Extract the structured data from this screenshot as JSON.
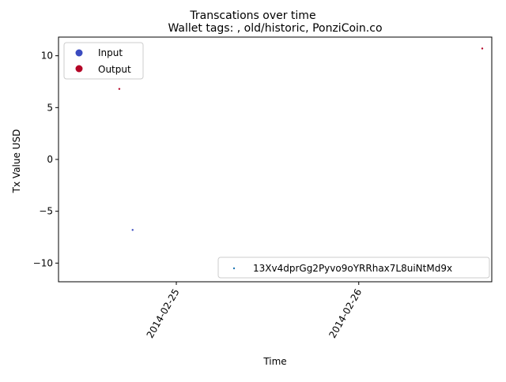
{
  "chart_data": {
    "type": "scatter",
    "suptitle": "Transcations over time",
    "title": "Wallet tags: , old/historic, PonziCoin.co",
    "xlabel": "Time",
    "ylabel": "Tx Value USD",
    "xlim": [
      "2014-02-24 08:30",
      "2014-02-26 17:30"
    ],
    "ylim": [
      -11.8,
      11.8
    ],
    "x_ticks": [
      {
        "value": "2014-02-25 00:00",
        "label": "2014-02-25"
      },
      {
        "value": "2014-02-26 00:00",
        "label": "2014-02-26"
      }
    ],
    "y_ticks": [
      {
        "value": 10,
        "label": "10"
      },
      {
        "value": 5,
        "label": "5"
      },
      {
        "value": 0,
        "label": "0"
      },
      {
        "value": -5,
        "label": "−5"
      },
      {
        "value": -10,
        "label": "−10"
      }
    ],
    "grid": false,
    "points": [
      {
        "x": "2014-02-24 16:30",
        "y": 6.8,
        "kind": "Output"
      },
      {
        "x": "2014-02-24 18:15",
        "y": -6.8,
        "kind": "Input"
      },
      {
        "x": "2014-02-26 16:15",
        "y": 10.7,
        "kind": "Output"
      }
    ],
    "class_legend": {
      "placement": "upper-left",
      "entries": [
        {
          "label": "Input",
          "color": "#3b4cc0"
        },
        {
          "label": "Output",
          "color": "#b40426"
        }
      ]
    },
    "series_legend": {
      "placement": "lower-right",
      "entries": [
        {
          "label": "13Xv4dprGg2Pyvo9oYRRhax7L8uiNtMd9x",
          "color": "#1f77b4"
        }
      ]
    }
  }
}
